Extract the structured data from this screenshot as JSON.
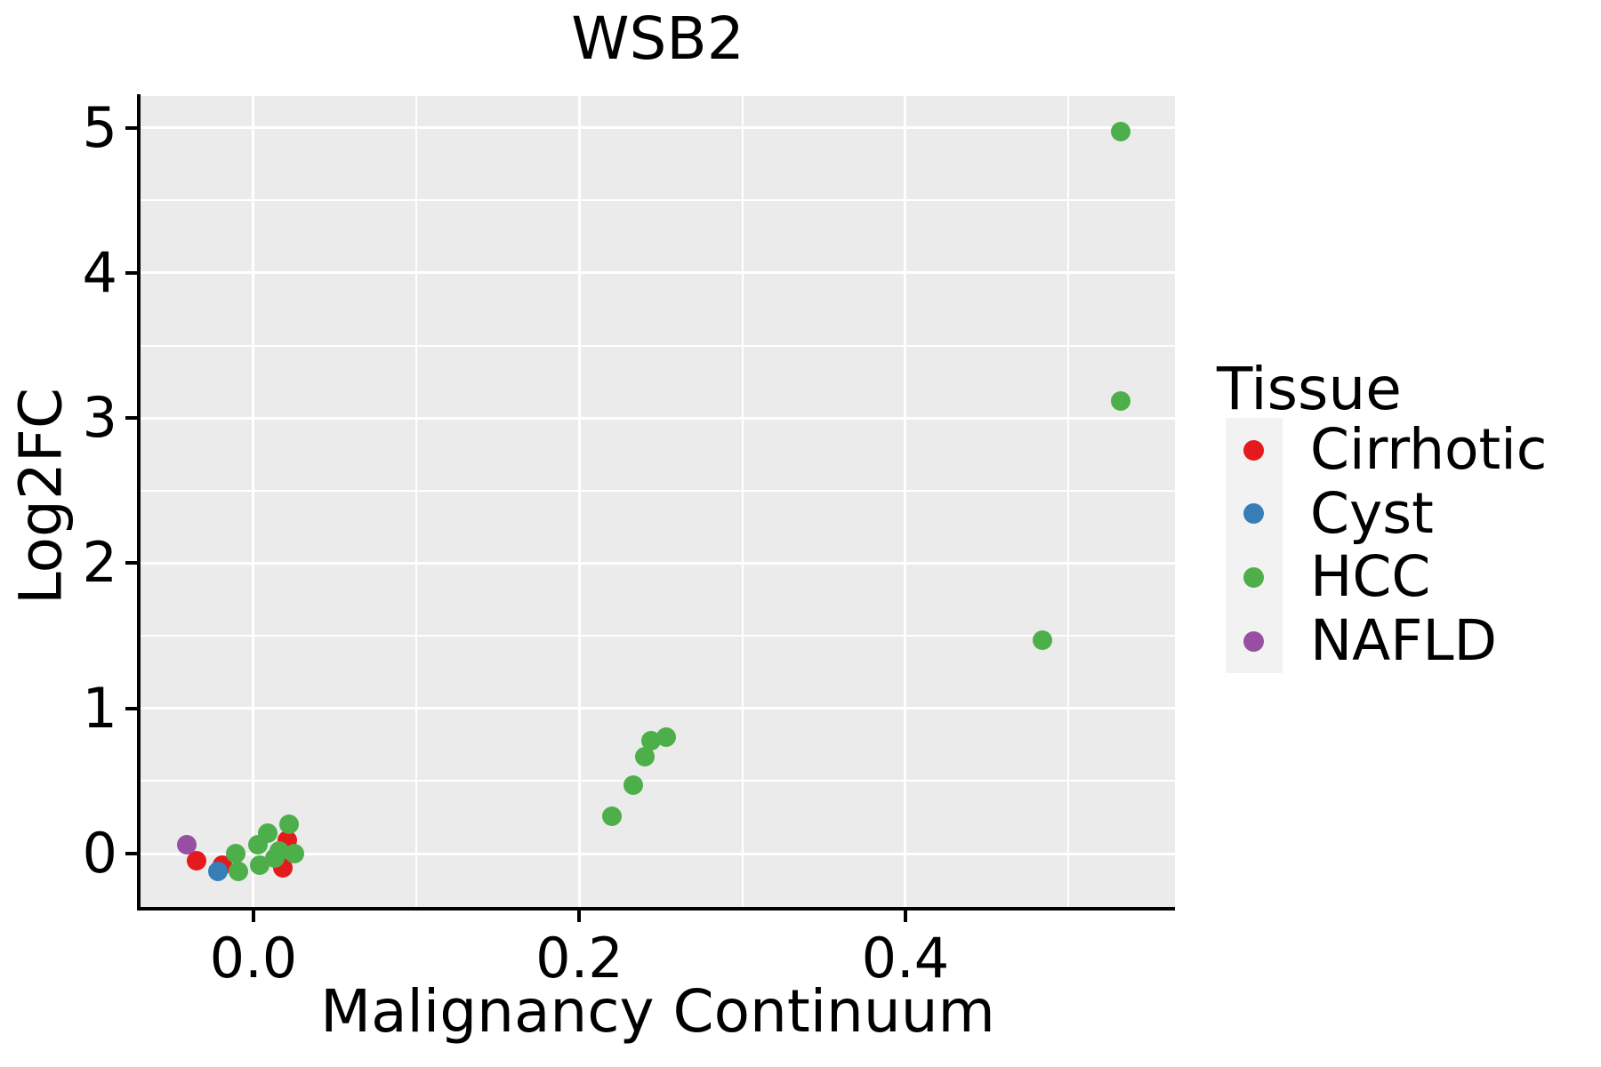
{
  "title": "WSB2",
  "axes": {
    "x": {
      "label": "Malignancy Continuum",
      "tick_labels": [
        "0.0",
        "0.2",
        "0.4"
      ],
      "tick_values": [
        0.0,
        0.2,
        0.4
      ],
      "minor_breaks": [
        0.1,
        0.3,
        0.5
      ],
      "range": [
        -0.0693,
        0.5654
      ]
    },
    "y": {
      "label": "Log2FC",
      "tick_labels": [
        "0",
        "1",
        "2",
        "3",
        "4",
        "5"
      ],
      "tick_values": [
        0,
        1,
        2,
        3,
        4,
        5
      ],
      "minor_breaks": [
        0.5,
        1.5,
        2.5,
        3.5,
        4.5
      ],
      "range": [
        -0.3674,
        5.218
      ]
    }
  },
  "legend": {
    "title": "Tissue",
    "position": "right",
    "items": [
      {
        "label": "Cirrhotic",
        "color": "#E41A1C",
        "icon": "dot"
      },
      {
        "label": "Cyst",
        "color": "#377EB8",
        "icon": "dot"
      },
      {
        "label": "HCC",
        "color": "#4DAF4A",
        "icon": "dot"
      },
      {
        "label": "NAFLD",
        "color": "#984EA3",
        "icon": "dot"
      }
    ]
  },
  "colors": {
    "panel_background": "#EBEBEB",
    "grid": "#FFFFFF",
    "axis_line": "#000000",
    "legend_key_background": "#F2F2F2",
    "text": "#000000"
  },
  "chart_data": {
    "type": "scatter",
    "title": "WSB2",
    "xlabel": "Malignancy Continuum",
    "ylabel": "Log2FC",
    "legend_title": "Tissue",
    "xlim": [
      -0.0693,
      0.5654
    ],
    "ylim": [
      -0.3674,
      5.218
    ],
    "grid": "on",
    "legend_position": "right",
    "series": [
      {
        "name": "Cirrhotic",
        "color": "#E41A1C",
        "points": [
          [
            -0.035,
            -0.05
          ],
          [
            -0.019,
            -0.08
          ],
          [
            0.021,
            0.09
          ],
          [
            0.018,
            -0.1
          ]
        ]
      },
      {
        "name": "Cyst",
        "color": "#377EB8",
        "points": [
          [
            -0.022,
            -0.12
          ]
        ]
      },
      {
        "name": "HCC",
        "color": "#4DAF4A",
        "points": [
          [
            -0.011,
            0.0
          ],
          [
            -0.009,
            -0.12
          ],
          [
            0.003,
            0.06
          ],
          [
            0.004,
            -0.08
          ],
          [
            0.009,
            0.14
          ],
          [
            0.013,
            -0.03
          ],
          [
            0.016,
            0.02
          ],
          [
            0.022,
            0.2
          ],
          [
            0.025,
            0.0
          ],
          [
            0.22,
            0.26
          ],
          [
            0.233,
            0.47
          ],
          [
            0.24,
            0.67
          ],
          [
            0.244,
            0.78
          ],
          [
            0.253,
            0.8
          ],
          [
            0.484,
            1.47
          ],
          [
            0.532,
            3.12
          ],
          [
            0.532,
            4.97
          ]
        ]
      },
      {
        "name": "NAFLD",
        "color": "#984EA3",
        "points": [
          [
            -0.041,
            0.06
          ]
        ]
      }
    ]
  }
}
